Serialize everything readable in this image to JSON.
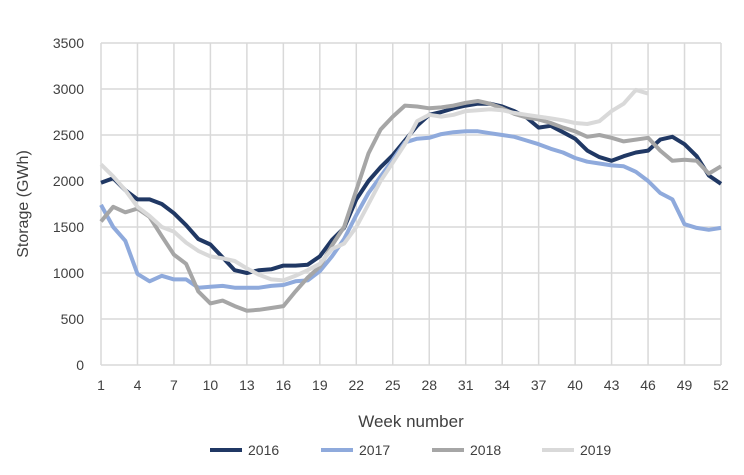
{
  "chart_data": {
    "type": "line",
    "title": "",
    "xlabel": "Week number",
    "ylabel": "Storage (GWh)",
    "ylim": [
      0,
      3500
    ],
    "xlim": [
      1,
      52
    ],
    "yticks": [
      0,
      500,
      1000,
      1500,
      2000,
      2500,
      3000,
      3500
    ],
    "xticks": [
      1,
      4,
      7,
      10,
      13,
      16,
      19,
      22,
      25,
      28,
      31,
      34,
      37,
      40,
      43,
      46,
      49,
      52
    ],
    "grid": true,
    "legend_position": "bottom",
    "series": [
      {
        "name": "2016",
        "color": "#203864",
        "values": [
          1980,
          2030,
          1900,
          1800,
          1800,
          1750,
          1650,
          1520,
          1370,
          1310,
          1170,
          1030,
          1000,
          1030,
          1040,
          1080,
          1080,
          1090,
          1180,
          1360,
          1490,
          1800,
          2000,
          2150,
          2280,
          2440,
          2600,
          2720,
          2750,
          2790,
          2820,
          2840,
          2840,
          2810,
          2760,
          2690,
          2580,
          2600,
          2530,
          2460,
          2330,
          2260,
          2220,
          2270,
          2310,
          2330,
          2450,
          2480,
          2400,
          2270,
          2060,
          1970
        ]
      },
      {
        "name": "2017",
        "color": "#8faadc",
        "values": [
          1740,
          1500,
          1350,
          990,
          910,
          970,
          930,
          930,
          840,
          850,
          860,
          840,
          840,
          840,
          860,
          870,
          910,
          920,
          1020,
          1180,
          1370,
          1630,
          1870,
          2050,
          2230,
          2420,
          2460,
          2470,
          2510,
          2530,
          2540,
          2540,
          2520,
          2500,
          2480,
          2440,
          2400,
          2350,
          2310,
          2250,
          2210,
          2190,
          2170,
          2160,
          2100,
          2000,
          1870,
          1800,
          1530,
          1490,
          1470,
          1490
        ]
      },
      {
        "name": "2018",
        "color": "#a6a6a6",
        "values": [
          1560,
          1720,
          1660,
          1700,
          1610,
          1400,
          1200,
          1100,
          800,
          670,
          700,
          640,
          590,
          600,
          620,
          640,
          800,
          950,
          1070,
          1300,
          1500,
          1900,
          2300,
          2560,
          2700,
          2820,
          2810,
          2790,
          2800,
          2820,
          2850,
          2870,
          2840,
          2790,
          2730,
          2690,
          2670,
          2630,
          2580,
          2540,
          2480,
          2500,
          2470,
          2430,
          2450,
          2470,
          2330,
          2220,
          2230,
          2220,
          2080,
          2160
        ]
      },
      {
        "name": "2019",
        "color": "#d9d9d9",
        "values": [
          2180,
          2050,
          1900,
          1720,
          1620,
          1500,
          1450,
          1330,
          1240,
          1180,
          1160,
          1130,
          1050,
          980,
          930,
          920,
          970,
          1030,
          1100,
          1260,
          1320,
          1500,
          1750,
          2000,
          2200,
          2400,
          2650,
          2720,
          2700,
          2720,
          2760,
          2770,
          2780,
          2770,
          2740,
          2720,
          2700,
          2680,
          2660,
          2630,
          2620,
          2650,
          2760,
          2840,
          2990,
          2950
        ]
      }
    ]
  }
}
